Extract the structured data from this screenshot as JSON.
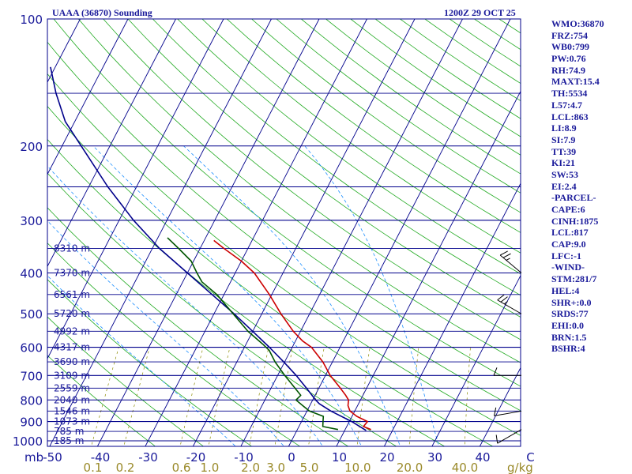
{
  "header": {
    "station": "UAAA (36870) Sounding",
    "time": "1200Z 29 OCT 25"
  },
  "indices": [
    "WMO:36870",
    "FRZ:754",
    "WB0:799",
    "PW:0.76",
    "RH:74.9",
    "MAXT:15.4",
    "TH:5534",
    "L57:4.7",
    "LCL:863",
    "LI:8.9",
    "SI:7.9",
    "TT:39",
    "KI:21",
    "SW:53",
    "EI:2.4",
    "-PARCEL-",
    "CAPE:6",
    "CINH:1875",
    "LCL:817",
    "CAP:9.0",
    "LFC:-1",
    "-WIND-",
    "STM:281/7",
    "HEL:4",
    "SHR+:0.0",
    "SRDS:77",
    "EHI:0.0",
    "BRN:1.5",
    "BSHR:4"
  ],
  "colors": {
    "frame": "#00008b",
    "isobar": "#00008b",
    "isotherm": "#00008b",
    "dry_adiabat": "#22aa22",
    "moist_adiabat": "#1e90ff",
    "mixing_ratio": "#8b8b00",
    "temperature": "#cc0000",
    "dewpoint": "#005500",
    "parcel": "#00008b",
    "wind": "#000000"
  },
  "chart_data": {
    "type": "skew-t",
    "title": "UAAA (36870) Sounding",
    "pressure_unit_label": "mb",
    "mixing_ratio_unit_label": "g/kg",
    "pressure_levels": [
      100,
      200,
      300,
      400,
      500,
      600,
      700,
      800,
      900,
      1000
    ],
    "temperature_ticks": [
      -50,
      -40,
      -30,
      -20,
      -10,
      0,
      10,
      20,
      30,
      40,
      50
    ],
    "temperature_tick_labels": [
      "-50",
      "-40",
      "-30",
      "-20",
      "-10",
      "0",
      "10",
      "20",
      "30",
      "40",
      "C"
    ],
    "mixing_ratio_labels": [
      "0.1",
      "0.2",
      "0.6",
      "1.0",
      "2.0",
      "3.0",
      "5.0",
      "10.0",
      "20.0",
      "40.0"
    ],
    "mixing_ratio_values": [
      0.1,
      0.2,
      0.6,
      1.0,
      2.0,
      3.0,
      5.0,
      10.0,
      20.0,
      40.0
    ],
    "heights": [
      {
        "p": 350,
        "label": "8310 m"
      },
      {
        "p": 400,
        "label": "7370 m"
      },
      {
        "p": 450,
        "label": "6561 m"
      },
      {
        "p": 500,
        "label": "5720 m"
      },
      {
        "p": 550,
        "label": "4992 m"
      },
      {
        "p": 600,
        "label": "4317 m"
      },
      {
        "p": 650,
        "label": "3690 m"
      },
      {
        "p": 700,
        "label": "3109 m"
      },
      {
        "p": 750,
        "label": "2559 m"
      },
      {
        "p": 800,
        "label": "2040 m"
      },
      {
        "p": 850,
        "label": "1546 m"
      },
      {
        "p": 900,
        "label": "1073 m"
      },
      {
        "p": 950,
        "label": "785 m"
      },
      {
        "p": 1000,
        "label": "185 m"
      }
    ],
    "temperature": [
      {
        "p": 940,
        "t": 15.4
      },
      {
        "p": 925,
        "t": 13.5
      },
      {
        "p": 900,
        "t": 13.8
      },
      {
        "p": 875,
        "t": 11.0
      },
      {
        "p": 850,
        "t": 9.0
      },
      {
        "p": 825,
        "t": 8.0
      },
      {
        "p": 800,
        "t": 7.5
      },
      {
        "p": 780,
        "t": 6.4
      },
      {
        "p": 750,
        "t": 4.5
      },
      {
        "p": 700,
        "t": 1.0
      },
      {
        "p": 650,
        "t": -2.0
      },
      {
        "p": 600,
        "t": -6.0
      },
      {
        "p": 580,
        "t": -8.5
      },
      {
        "p": 550,
        "t": -11.5
      },
      {
        "p": 500,
        "t": -16.0
      },
      {
        "p": 450,
        "t": -20.5
      },
      {
        "p": 400,
        "t": -26.0
      },
      {
        "p": 375,
        "t": -30.0
      },
      {
        "p": 350,
        "t": -35.0
      },
      {
        "p": 335,
        "t": -38.0
      }
    ],
    "dewpoint": [
      {
        "p": 940,
        "t": 8.5
      },
      {
        "p": 925,
        "t": 5.0
      },
      {
        "p": 900,
        "t": 4.5
      },
      {
        "p": 875,
        "t": 4.0
      },
      {
        "p": 850,
        "t": 0.5
      },
      {
        "p": 825,
        "t": -1.5
      },
      {
        "p": 800,
        "t": -3.5
      },
      {
        "p": 780,
        "t": -3.0
      },
      {
        "p": 750,
        "t": -5.0
      },
      {
        "p": 700,
        "t": -8.5
      },
      {
        "p": 650,
        "t": -12.0
      },
      {
        "p": 610,
        "t": -14.5
      },
      {
        "p": 590,
        "t": -16.5
      },
      {
        "p": 550,
        "t": -21.0
      },
      {
        "p": 500,
        "t": -26.0
      },
      {
        "p": 450,
        "t": -31.5
      },
      {
        "p": 420,
        "t": -36.0
      },
      {
        "p": 400,
        "t": -38.0
      },
      {
        "p": 375,
        "t": -40.5
      },
      {
        "p": 350,
        "t": -44.5
      },
      {
        "p": 330,
        "t": -48.0
      }
    ],
    "parcel": [
      {
        "p": 945,
        "t": 14.5
      },
      {
        "p": 900,
        "t": 10.5
      },
      {
        "p": 850,
        "t": 5.0
      },
      {
        "p": 817,
        "t": 1.8
      },
      {
        "p": 800,
        "t": 0.6
      },
      {
        "p": 750,
        "t": -2.6
      },
      {
        "p": 700,
        "t": -6.1
      },
      {
        "p": 650,
        "t": -10.2
      },
      {
        "p": 600,
        "t": -14.8
      },
      {
        "p": 550,
        "t": -20.0
      },
      {
        "p": 500,
        "t": -25.8
      },
      {
        "p": 450,
        "t": -32.5
      },
      {
        "p": 400,
        "t": -40.0
      },
      {
        "p": 350,
        "t": -48.5
      },
      {
        "p": 300,
        "t": -57.0
      },
      {
        "p": 250,
        "t": -66.0
      },
      {
        "p": 200,
        "t": -76.0
      },
      {
        "p": 175,
        "t": -82.0
      },
      {
        "p": 150,
        "t": -87.0
      },
      {
        "p": 130,
        "t": -91.0
      }
    ],
    "wind_barbs": [
      {
        "p": 940,
        "dir": 240,
        "kt": 10
      },
      {
        "p": 850,
        "dir": 260,
        "kt": 10
      },
      {
        "p": 700,
        "dir": 270,
        "kt": 10
      },
      {
        "p": 500,
        "dir": 300,
        "kt": 15
      },
      {
        "p": 400,
        "dir": 310,
        "kt": 15
      }
    ]
  }
}
